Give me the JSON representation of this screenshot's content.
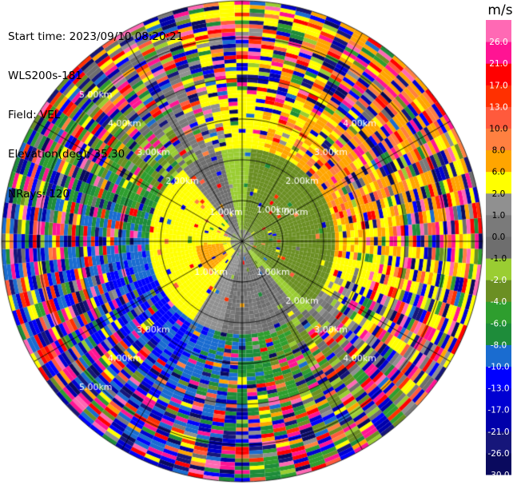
{
  "info": {
    "start_time": "Start time: 2023/09/10 08:20:21",
    "instrument": "WLS200s-181",
    "field": "Field: VEL",
    "elevation": "Elevation(deg): 35.30",
    "nrays": "NRays: 120"
  },
  "chart_data": {
    "type": "heatmap",
    "projection": "polar",
    "title": "",
    "range_unit": "km",
    "range_rings_km": [
      1,
      2,
      3,
      4,
      5
    ],
    "range_ring_labels": {
      "upper-left": [
        "2.00km",
        "3.00km",
        "4.00km",
        "5.00km"
      ],
      "upper-right": [
        "1.00km",
        "2.00km",
        "3.00km",
        "4.00km"
      ],
      "lower-right": [
        "1.00km",
        "2.00km",
        "3.00km",
        "4.00km"
      ],
      "lower-left": [
        "1.00km",
        "3.00km",
        "4.00km",
        "5.00km"
      ],
      "inner": [
        "1.00km",
        "1.00km"
      ]
    },
    "max_range_km": 5.9,
    "n_rays": 120,
    "n_gates": 58,
    "spokes_deg": [
      0,
      30,
      60,
      90,
      120,
      150,
      180,
      210,
      240,
      270,
      300,
      330
    ],
    "colorbar": {
      "unit": "m/s",
      "bounds": [
        -30.0,
        -26.0,
        -21.0,
        -17.0,
        -13.0,
        -10.0,
        -8.0,
        -6.0,
        -4.0,
        -2.0,
        -1.0,
        0.0,
        1.0,
        2.0,
        6.0,
        8.0,
        10.0,
        13.0,
        17.0,
        21.0,
        26.0,
        30.0
      ],
      "tick_labels": [
        "-30.0",
        "-26.0",
        "-21.0",
        "-17.0",
        "-13.0",
        "-10.0",
        "-8.0",
        "-6.0",
        "-4.0",
        "-2.0",
        "-1.0",
        "0.0",
        "1.0",
        "2.0",
        "6.0",
        "8.0",
        "10.0",
        "13.0",
        "17.0",
        "21.0",
        "26.0"
      ],
      "colors": [
        "#0a0a5e",
        "#16167a",
        "#0000aa",
        "#0000d2",
        "#0000ff",
        "#1a6cd0",
        "#1e8c3a",
        "#2e9e2e",
        "#6b8f23",
        "#9acd32",
        "#6e6e6e",
        "#7a7a7a",
        "#909090",
        "#ffff00",
        "#ffa500",
        "#ff8040",
        "#ff5a3c",
        "#ff3000",
        "#ff0000",
        "#ff1493",
        "#ff69b4"
      ]
    },
    "velocity_pattern": {
      "near_field": [
        {
          "azimuth_range_deg": [
            0,
            150
          ],
          "range_km": [
            0,
            1.6
          ],
          "approx_velocity": -4.0
        },
        {
          "azimuth_range_deg": [
            180,
            340
          ],
          "range_km": [
            0.5,
            2.2
          ],
          "approx_velocity": 2.0
        },
        {
          "azimuth_range_deg": [
            225,
            260
          ],
          "range_km": [
            0.5,
            1.0
          ],
          "approx_velocity": 6.0
        },
        {
          "azimuth_range_deg": [
            150,
            190
          ],
          "range_km": [
            0.8,
            2.0
          ],
          "approx_velocity": 0.0
        }
      ],
      "far_field": [
        {
          "azimuth_range_deg": [
            20,
            90
          ],
          "range_km": [
            2.5,
            5.9
          ],
          "approx_velocity": 8.0
        },
        {
          "azimuth_range_deg": [
            180,
            270
          ],
          "range_km": [
            2.5,
            5.9
          ],
          "approx_velocity": -6.0
        }
      ]
    }
  }
}
